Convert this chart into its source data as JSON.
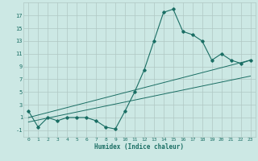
{
  "xlabel": "Humidex (Indice chaleur)",
  "background_color": "#cce8e4",
  "grid_color": "#b0c8c4",
  "line_color": "#1a6e64",
  "xlim": [
    -0.5,
    23.5
  ],
  "ylim": [
    -2,
    19
  ],
  "xticks": [
    0,
    1,
    2,
    3,
    4,
    5,
    6,
    7,
    8,
    9,
    10,
    11,
    12,
    13,
    14,
    15,
    16,
    17,
    18,
    19,
    20,
    21,
    22,
    23
  ],
  "yticks": [
    -1,
    1,
    3,
    5,
    7,
    9,
    11,
    13,
    15,
    17
  ],
  "curve1_x": [
    0,
    1,
    2,
    3,
    4,
    5,
    6,
    7,
    8,
    9,
    10,
    11,
    12,
    13,
    14,
    15,
    16,
    17,
    18,
    19,
    20,
    21,
    22,
    23
  ],
  "curve1_y": [
    2.0,
    -0.5,
    1.0,
    0.5,
    1.0,
    1.0,
    1.0,
    0.5,
    -0.5,
    -0.8,
    2.0,
    5.0,
    8.5,
    13.0,
    17.5,
    18.0,
    14.5,
    14.0,
    13.0,
    10.0,
    11.0,
    10.0,
    9.5,
    10.0
  ],
  "line1_x": [
    0,
    23
  ],
  "line1_y": [
    1.0,
    10.0
  ],
  "line2_x": [
    0,
    23
  ],
  "line2_y": [
    0.3,
    7.5
  ]
}
